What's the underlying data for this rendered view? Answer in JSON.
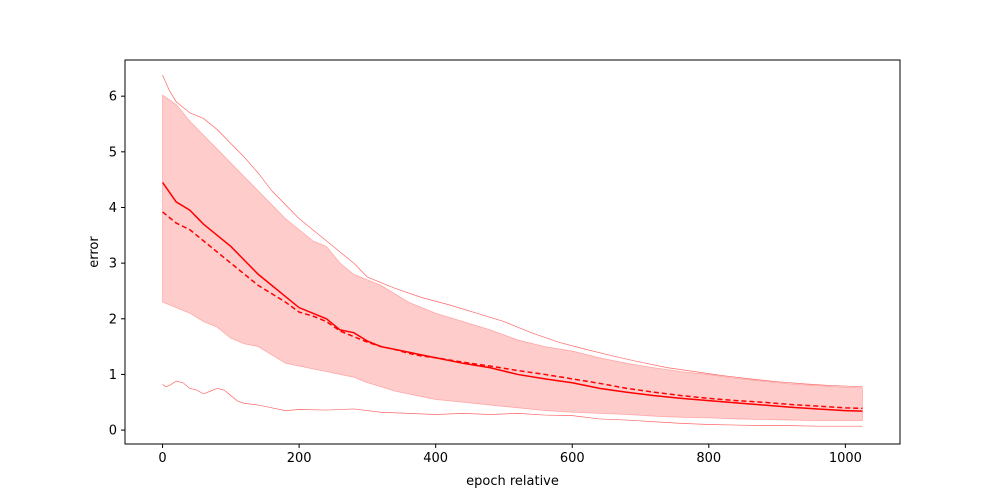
{
  "chart_data": {
    "type": "line",
    "title": "",
    "xlabel": "epoch relative",
    "ylabel": "error",
    "xlim": [
      -55,
      1080
    ],
    "ylim": [
      -0.25,
      6.65
    ],
    "xticks": [
      0,
      200,
      400,
      600,
      800,
      1000
    ],
    "yticks": [
      0,
      1,
      2,
      3,
      4,
      5,
      6
    ],
    "grid": false,
    "color": "#ff0000",
    "band_fill": "#ffcccc",
    "series": [
      {
        "style": "solid",
        "x": [
          0,
          20,
          40,
          60,
          80,
          100,
          120,
          140,
          160,
          180,
          200,
          220,
          240,
          260,
          280,
          300,
          320,
          340,
          360,
          380,
          400,
          440,
          480,
          520,
          560,
          600,
          640,
          680,
          720,
          760,
          800,
          840,
          880,
          920,
          960,
          1000,
          1025
        ],
        "y": [
          4.45,
          4.1,
          3.95,
          3.7,
          3.5,
          3.3,
          3.05,
          2.8,
          2.6,
          2.4,
          2.2,
          2.1,
          2.0,
          1.8,
          1.75,
          1.6,
          1.5,
          1.45,
          1.4,
          1.35,
          1.3,
          1.2,
          1.12,
          1.0,
          0.92,
          0.85,
          0.75,
          0.68,
          0.62,
          0.57,
          0.53,
          0.49,
          0.45,
          0.41,
          0.38,
          0.35,
          0.34
        ]
      },
      {
        "style": "dashed",
        "x": [
          0,
          20,
          40,
          60,
          80,
          100,
          120,
          140,
          160,
          180,
          200,
          220,
          240,
          260,
          280,
          300,
          320,
          340,
          360,
          380,
          400,
          440,
          480,
          520,
          560,
          600,
          640,
          680,
          720,
          760,
          800,
          840,
          880,
          920,
          960,
          1000,
          1025
        ],
        "y": [
          3.92,
          3.72,
          3.6,
          3.4,
          3.2,
          3.0,
          2.8,
          2.6,
          2.45,
          2.3,
          2.12,
          2.05,
          1.95,
          1.78,
          1.68,
          1.58,
          1.5,
          1.45,
          1.38,
          1.33,
          1.3,
          1.22,
          1.15,
          1.07,
          1.0,
          0.92,
          0.84,
          0.75,
          0.68,
          0.62,
          0.57,
          0.53,
          0.5,
          0.46,
          0.43,
          0.4,
          0.39
        ]
      }
    ],
    "band": {
      "x": [
        0,
        20,
        40,
        60,
        80,
        100,
        120,
        140,
        160,
        180,
        200,
        220,
        240,
        260,
        280,
        300,
        320,
        340,
        360,
        380,
        400,
        440,
        480,
        520,
        560,
        600,
        640,
        680,
        720,
        760,
        800,
        840,
        880,
        920,
        960,
        1000,
        1025
      ],
      "upper": [
        6.02,
        5.85,
        5.55,
        5.3,
        5.05,
        4.8,
        4.55,
        4.3,
        4.05,
        3.8,
        3.6,
        3.4,
        3.3,
        3.0,
        2.8,
        2.7,
        2.6,
        2.45,
        2.3,
        2.2,
        2.1,
        1.95,
        1.8,
        1.62,
        1.5,
        1.42,
        1.3,
        1.2,
        1.12,
        1.05,
        1.0,
        0.93,
        0.88,
        0.83,
        0.8,
        0.77,
        0.76
      ],
      "lower": [
        2.3,
        2.2,
        2.1,
        1.95,
        1.85,
        1.65,
        1.55,
        1.5,
        1.35,
        1.2,
        1.15,
        1.1,
        1.05,
        1.0,
        0.95,
        0.85,
        0.78,
        0.7,
        0.65,
        0.6,
        0.55,
        0.5,
        0.45,
        0.4,
        0.35,
        0.32,
        0.3,
        0.28,
        0.25,
        0.23,
        0.22,
        0.2,
        0.19,
        0.18,
        0.17,
        0.17,
        0.17
      ]
    },
    "envelope": [
      {
        "name_hidden": "upper",
        "x": [
          0,
          10,
          20,
          40,
          60,
          80,
          100,
          120,
          140,
          160,
          180,
          200,
          220,
          240,
          260,
          280,
          300,
          340,
          380,
          420,
          460,
          500,
          540,
          580,
          620,
          660,
          700,
          740,
          780,
          820,
          860,
          900,
          940,
          980,
          1025
        ],
        "y": [
          6.38,
          6.1,
          5.9,
          5.7,
          5.6,
          5.4,
          5.15,
          4.9,
          4.62,
          4.3,
          4.05,
          3.8,
          3.6,
          3.4,
          3.2,
          3.0,
          2.75,
          2.55,
          2.38,
          2.25,
          2.1,
          1.95,
          1.75,
          1.58,
          1.45,
          1.33,
          1.22,
          1.12,
          1.05,
          0.98,
          0.92,
          0.87,
          0.83,
          0.8,
          0.78
        ]
      },
      {
        "name_hidden": "lower",
        "x": [
          0,
          5,
          10,
          20,
          30,
          40,
          50,
          60,
          70,
          80,
          90,
          100,
          110,
          120,
          140,
          160,
          180,
          200,
          240,
          280,
          320,
          360,
          400,
          440,
          480,
          520,
          560,
          600,
          640,
          680,
          720,
          760,
          800,
          840,
          880,
          920,
          960,
          1000,
          1025
        ],
        "y": [
          0.82,
          0.78,
          0.8,
          0.88,
          0.85,
          0.75,
          0.72,
          0.65,
          0.7,
          0.75,
          0.72,
          0.62,
          0.52,
          0.48,
          0.45,
          0.4,
          0.35,
          0.37,
          0.36,
          0.38,
          0.32,
          0.3,
          0.28,
          0.3,
          0.28,
          0.3,
          0.27,
          0.26,
          0.2,
          0.18,
          0.15,
          0.12,
          0.1,
          0.09,
          0.08,
          0.08,
          0.07,
          0.07,
          0.07
        ]
      }
    ]
  }
}
